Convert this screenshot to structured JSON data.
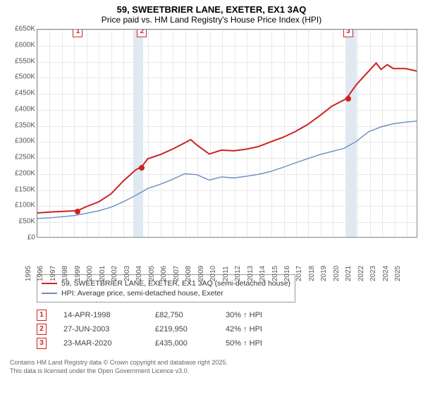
{
  "title": {
    "line1": "59, SWEETBRIER LANE, EXETER, EX1 3AQ",
    "line2": "Price paid vs. HM Land Registry's House Price Index (HPI)"
  },
  "chart": {
    "type": "line",
    "x_range": [
      1995,
      2025.9
    ],
    "y_range": [
      0,
      650
    ],
    "y_unit_suffix": "K",
    "y_prefix": "£",
    "yticks": [
      0,
      50,
      100,
      150,
      200,
      250,
      300,
      350,
      400,
      450,
      500,
      550,
      600,
      650
    ],
    "xticks": [
      1995,
      1996,
      1997,
      1998,
      1999,
      2000,
      2001,
      2002,
      2003,
      2004,
      2005,
      2006,
      2007,
      2008,
      2009,
      2010,
      2011,
      2012,
      2013,
      2014,
      2015,
      2016,
      2017,
      2018,
      2019,
      2020,
      2021,
      2022,
      2023,
      2024,
      2025
    ],
    "grid_color": "#e8e8e8",
    "border_color": "#888888",
    "background_color": "#ffffff",
    "highlight_bands": [
      {
        "from": 2002.8,
        "to": 2003.6,
        "color": "#dfe9f3"
      },
      {
        "from": 2020.0,
        "to": 2020.9,
        "color": "#dfe9f3"
      }
    ],
    "series": [
      {
        "id": "price_paid",
        "label": "59, SWEETBRIER LANE, EXETER, EX1 3AQ (semi-detached house)",
        "color": "#cc2222",
        "line_width": 2,
        "x": [
          1995,
          1996,
          1997,
          1998,
          1998.3,
          1999,
          2000,
          2001,
          2002,
          2003,
          2003.5,
          2004,
          2005,
          2006,
          2007,
          2007.5,
          2008,
          2009,
          2010,
          2011,
          2012,
          2013,
          2014,
          2015,
          2016,
          2017,
          2018,
          2019,
          2020,
          2020.2,
          2021,
          2022,
          2022.6,
          2023,
          2023.5,
          2024,
          2025,
          2025.9
        ],
        "y": [
          75,
          78,
          80,
          82,
          82.75,
          95,
          110,
          135,
          175,
          210,
          219.95,
          245,
          258,
          275,
          295,
          305,
          288,
          260,
          272,
          270,
          275,
          283,
          298,
          312,
          330,
          352,
          380,
          410,
          430,
          435,
          478,
          520,
          545,
          525,
          540,
          528,
          528,
          520
        ]
      },
      {
        "id": "hpi",
        "label": "HPI: Average price, semi-detached house, Exeter",
        "color": "#6a8bc0",
        "line_width": 1.4,
        "x": [
          1995,
          1996,
          1997,
          1998,
          1999,
          2000,
          2001,
          2002,
          2003,
          2004,
          2005,
          2006,
          2007,
          2008,
          2009,
          2010,
          2011,
          2012,
          2013,
          2014,
          2015,
          2016,
          2017,
          2018,
          2019,
          2020,
          2021,
          2022,
          2023,
          2024,
          2025,
          2025.9
        ],
        "y": [
          58,
          60,
          63,
          67,
          74,
          82,
          93,
          110,
          130,
          152,
          165,
          180,
          198,
          195,
          178,
          188,
          185,
          190,
          196,
          205,
          218,
          232,
          245,
          258,
          268,
          278,
          300,
          330,
          345,
          355,
          360,
          363
        ]
      }
    ],
    "sale_markers": [
      {
        "n": "1",
        "x": 1998.29,
        "y": 82.75
      },
      {
        "n": "2",
        "x": 2003.49,
        "y": 219.95
      },
      {
        "n": "3",
        "x": 2020.23,
        "y": 435
      }
    ]
  },
  "legend": [
    {
      "color": "#cc2222",
      "label": "59, SWEETBRIER LANE, EXETER, EX1 3AQ (semi-detached house)"
    },
    {
      "color": "#6a8bc0",
      "label": "HPI: Average price, semi-detached house, Exeter"
    }
  ],
  "sales_table": {
    "rows": [
      {
        "n": "1",
        "date": "14-APR-1998",
        "price": "£82,750",
        "hpi": "30% ↑ HPI"
      },
      {
        "n": "2",
        "date": "27-JUN-2003",
        "price": "£219,950",
        "hpi": "42% ↑ HPI"
      },
      {
        "n": "3",
        "date": "23-MAR-2020",
        "price": "£435,000",
        "hpi": "50% ↑ HPI"
      }
    ]
  },
  "footer": {
    "line1": "Contains HM Land Registry data © Crown copyright and database right 2025.",
    "line2": "This data is licensed under the Open Government Licence v3.0."
  }
}
